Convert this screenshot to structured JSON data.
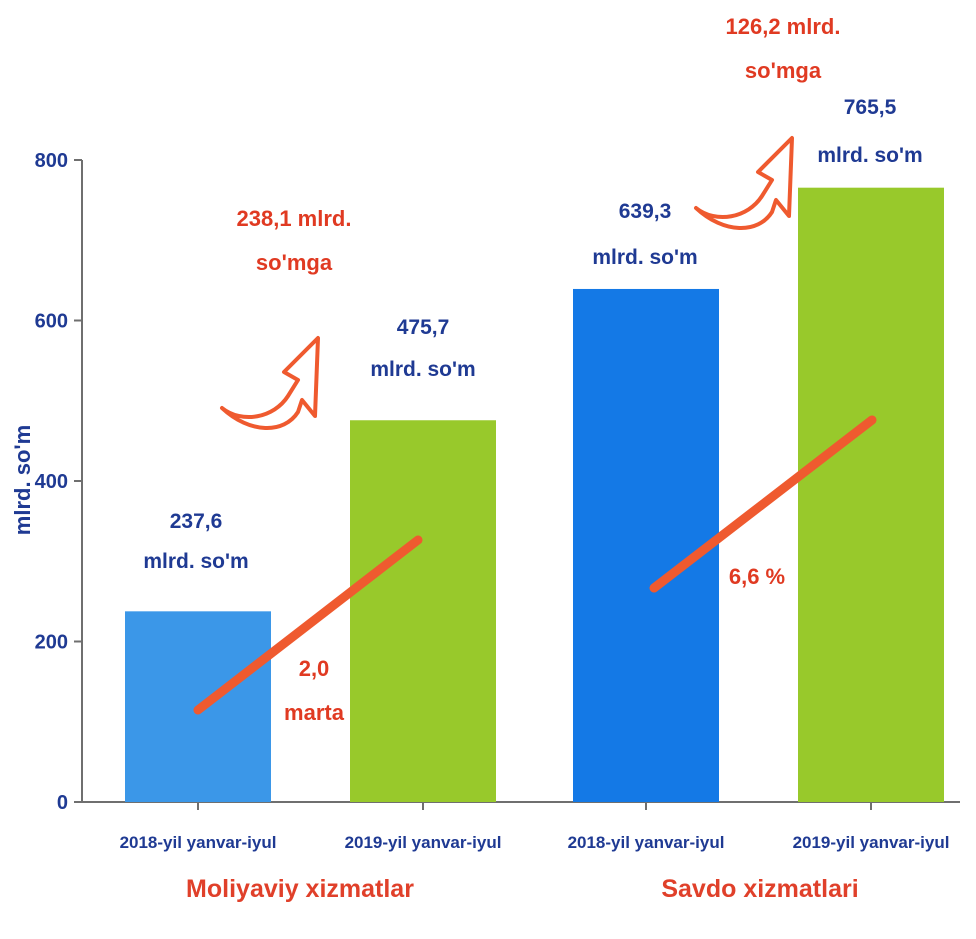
{
  "chart_data": {
    "type": "bar",
    "ylabel": "mlrd. so'm",
    "ylim": [
      0,
      800
    ],
    "yticks": [
      "0",
      "200",
      "400",
      "600",
      "800"
    ],
    "grid": false,
    "categories": [
      "2018-yil yanvar-iyul",
      "2019-yil yanvar-iyul",
      "2018-yil yanvar-iyul",
      "2019-yil yanvar-iyul"
    ],
    "values": [
      237.6,
      475.7,
      639.3,
      765.5
    ],
    "value_labels": [
      [
        "237,6",
        "mlrd. so'm"
      ],
      [
        "475,7",
        "mlrd. so'm"
      ],
      [
        "639,3",
        "mlrd. so'm"
      ],
      [
        "765,5",
        "mlrd. so'm"
      ]
    ],
    "groups": [
      {
        "label": "Moliyaviy xizmatlar",
        "increase": [
          "238,1 mlrd.",
          "so'mga"
        ],
        "growth": [
          "2,0",
          "marta"
        ]
      },
      {
        "label": "Savdo xizmatlari",
        "increase": [
          "126,2 mlrd.",
          "so'mga"
        ],
        "growth": [
          "6,6 %"
        ]
      }
    ],
    "colors": {
      "bars": [
        "#3b97e8",
        "#98c92b",
        "#1479e6",
        "#98c92b"
      ],
      "trend": "#ef5a2f",
      "arrow": "#ef5a2f",
      "axis_text": "#1f3a93",
      "annotation": "#e03a22"
    }
  }
}
